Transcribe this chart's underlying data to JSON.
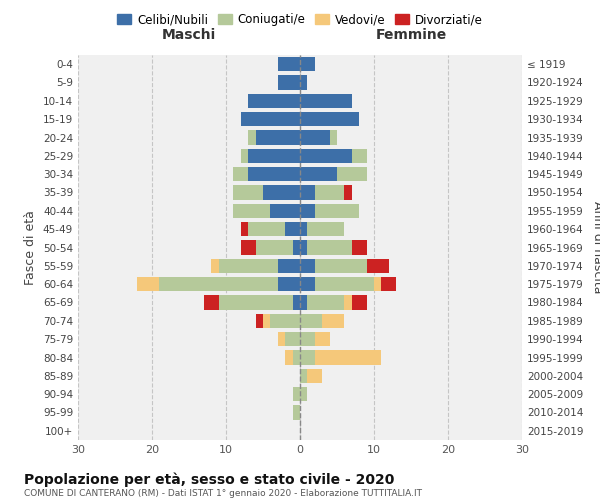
{
  "age_groups": [
    "0-4",
    "5-9",
    "10-14",
    "15-19",
    "20-24",
    "25-29",
    "30-34",
    "35-39",
    "40-44",
    "45-49",
    "50-54",
    "55-59",
    "60-64",
    "65-69",
    "70-74",
    "75-79",
    "80-84",
    "85-89",
    "90-94",
    "95-99",
    "100+"
  ],
  "birth_years": [
    "2015-2019",
    "2010-2014",
    "2005-2009",
    "2000-2004",
    "1995-1999",
    "1990-1994",
    "1985-1989",
    "1980-1984",
    "1975-1979",
    "1970-1974",
    "1965-1969",
    "1960-1964",
    "1955-1959",
    "1950-1954",
    "1945-1949",
    "1940-1944",
    "1935-1939",
    "1930-1934",
    "1925-1929",
    "1920-1924",
    "≤ 1919"
  ],
  "males": {
    "celibi": [
      3,
      3,
      7,
      8,
      6,
      7,
      7,
      5,
      4,
      2,
      1,
      3,
      3,
      1,
      0,
      0,
      0,
      0,
      0,
      0,
      0
    ],
    "coniugati": [
      0,
      0,
      0,
      0,
      1,
      1,
      2,
      4,
      5,
      5,
      5,
      8,
      16,
      10,
      4,
      2,
      1,
      0,
      1,
      1,
      0
    ],
    "vedovi": [
      0,
      0,
      0,
      0,
      0,
      0,
      0,
      0,
      0,
      0,
      0,
      1,
      3,
      0,
      1,
      1,
      1,
      0,
      0,
      0,
      0
    ],
    "divorziati": [
      0,
      0,
      0,
      0,
      0,
      0,
      0,
      0,
      0,
      1,
      2,
      0,
      0,
      2,
      1,
      0,
      0,
      0,
      0,
      0,
      0
    ]
  },
  "females": {
    "nubili": [
      2,
      1,
      7,
      8,
      4,
      7,
      5,
      2,
      2,
      1,
      1,
      2,
      2,
      1,
      0,
      0,
      0,
      0,
      0,
      0,
      0
    ],
    "coniugate": [
      0,
      0,
      0,
      0,
      1,
      2,
      4,
      4,
      6,
      5,
      6,
      7,
      8,
      5,
      3,
      2,
      2,
      1,
      1,
      0,
      0
    ],
    "vedove": [
      0,
      0,
      0,
      0,
      0,
      0,
      0,
      0,
      0,
      0,
      0,
      0,
      1,
      1,
      3,
      2,
      9,
      2,
      0,
      0,
      0
    ],
    "divorziate": [
      0,
      0,
      0,
      0,
      0,
      0,
      0,
      1,
      0,
      0,
      2,
      3,
      2,
      2,
      0,
      0,
      0,
      0,
      0,
      0,
      0
    ]
  },
  "colors": {
    "celibi": "#3d6fa8",
    "coniugati": "#b5c99a",
    "vedovi": "#f5c87a",
    "divorziati": "#cc2222"
  },
  "xlim": 30,
  "title": "Popolazione per età, sesso e stato civile - 2020",
  "subtitle": "COMUNE DI CANTERANO (RM) - Dati ISTAT 1° gennaio 2020 - Elaborazione TUTTITALIA.IT",
  "ylabel_left": "Fasce di età",
  "ylabel_right": "Anni di nascita",
  "xlabel_maschi": "Maschi",
  "xlabel_femmine": "Femmine",
  "legend_labels": [
    "Celibi/Nubili",
    "Coniugati/e",
    "Vedovi/e",
    "Divorziati/e"
  ],
  "background_color": "#ffffff",
  "plot_bg_color": "#f0f0f0"
}
